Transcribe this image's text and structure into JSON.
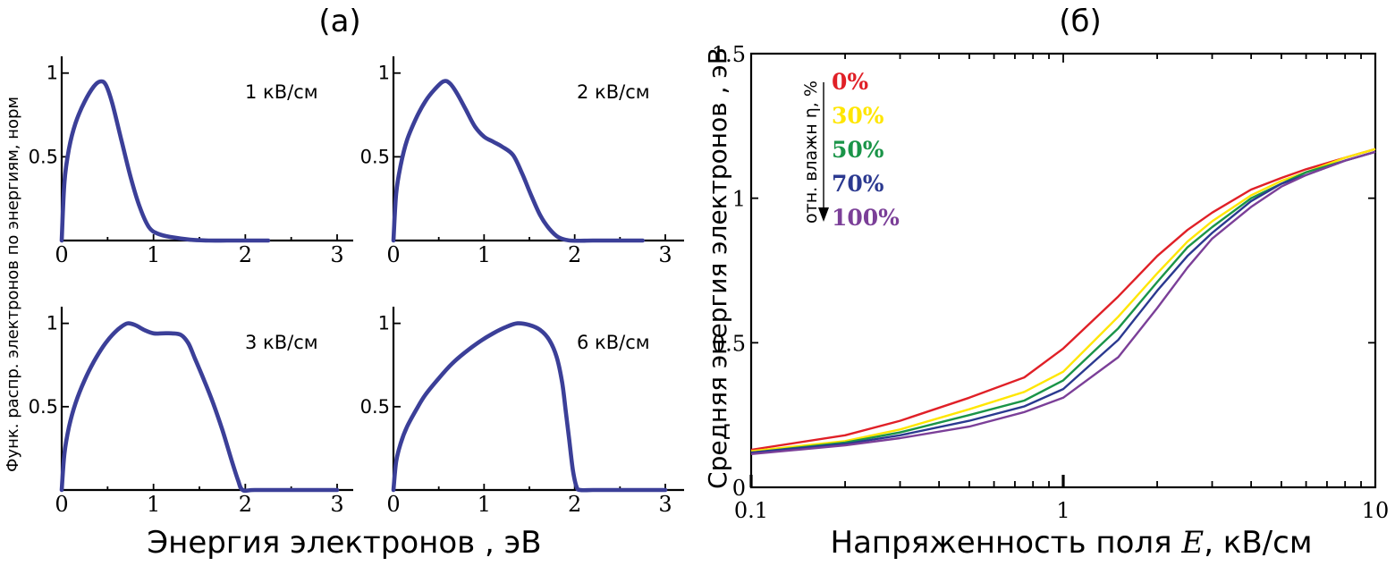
{
  "figure": {
    "panel_a_label": "(a)",
    "panel_b_label": "(б)"
  },
  "chart_data": [
    {
      "type": "line",
      "title": "(a)",
      "ylabel": "Функ. распр. электронов по энергиям, норм",
      "xlabel": "Энергия электронов , эВ",
      "xlim": [
        0,
        3
      ],
      "ylim": [
        0,
        1.1
      ],
      "x_ticks": [
        "0",
        "1",
        "2",
        "3"
      ],
      "y_ticks": [
        "0.5",
        "1"
      ],
      "color": "#3b3f98",
      "subplots": [
        {
          "label": "1 кВ/см",
          "x": [
            0,
            0.03,
            0.08,
            0.15,
            0.25,
            0.35,
            0.42,
            0.48,
            0.55,
            0.65,
            0.75,
            0.85,
            0.95,
            1.05,
            1.2,
            1.4,
            1.6,
            1.8,
            2.0,
            2.25
          ],
          "y": [
            0,
            0.35,
            0.55,
            0.7,
            0.83,
            0.92,
            0.95,
            0.93,
            0.82,
            0.6,
            0.38,
            0.2,
            0.08,
            0.04,
            0.02,
            0.005,
            0,
            0,
            0,
            0
          ]
        },
        {
          "label": "2 кВ/см",
          "x": [
            0,
            0.03,
            0.08,
            0.15,
            0.25,
            0.35,
            0.45,
            0.55,
            0.62,
            0.7,
            0.8,
            0.9,
            1.0,
            1.1,
            1.2,
            1.32,
            1.42,
            1.52,
            1.62,
            1.72,
            1.82,
            1.95,
            2.2,
            2.5,
            2.75
          ],
          "y": [
            0,
            0.28,
            0.45,
            0.6,
            0.73,
            0.83,
            0.9,
            0.95,
            0.94,
            0.88,
            0.78,
            0.68,
            0.62,
            0.59,
            0.56,
            0.51,
            0.4,
            0.27,
            0.15,
            0.07,
            0.02,
            0,
            0,
            0,
            0
          ]
        },
        {
          "label": "3 кВ/см",
          "x": [
            0,
            0.03,
            0.08,
            0.15,
            0.25,
            0.35,
            0.45,
            0.55,
            0.65,
            0.72,
            0.8,
            0.9,
            1.0,
            1.1,
            1.2,
            1.3,
            1.38,
            1.45,
            1.55,
            1.65,
            1.75,
            1.85,
            1.92,
            1.97,
            2.1,
            2.5,
            3.0
          ],
          "y": [
            0,
            0.22,
            0.38,
            0.52,
            0.66,
            0.77,
            0.86,
            0.93,
            0.98,
            1.0,
            0.99,
            0.96,
            0.94,
            0.94,
            0.94,
            0.93,
            0.88,
            0.79,
            0.66,
            0.52,
            0.36,
            0.18,
            0.06,
            0,
            0,
            0,
            0
          ]
        },
        {
          "label": "6 кВ/см",
          "x": [
            0,
            0.03,
            0.08,
            0.15,
            0.25,
            0.35,
            0.5,
            0.65,
            0.8,
            0.95,
            1.1,
            1.25,
            1.37,
            1.5,
            1.62,
            1.72,
            1.8,
            1.86,
            1.9,
            1.94,
            1.98,
            2.02,
            2.06,
            2.2,
            2.5,
            3.0
          ],
          "y": [
            0,
            0.17,
            0.28,
            0.38,
            0.48,
            0.57,
            0.67,
            0.76,
            0.83,
            0.89,
            0.94,
            0.98,
            1.0,
            0.99,
            0.96,
            0.9,
            0.8,
            0.65,
            0.48,
            0.3,
            0.12,
            0.02,
            0,
            0,
            0,
            0
          ]
        }
      ]
    },
    {
      "type": "line",
      "title": "(б)",
      "xlabel": "Напряженность поля E, кВ/см",
      "xlabel_parts": {
        "before": "Напряженность поля ",
        "var": "E",
        "after": ", кВ/см"
      },
      "ylabel": "Средняя энергия электронов , эВ",
      "x_scale": "log",
      "xlim": [
        0.1,
        10
      ],
      "ylim": [
        0,
        1.5
      ],
      "x_ticks": [
        "0.1",
        "1",
        "10"
      ],
      "y_ticks": [
        "0",
        "0.5",
        "1",
        "1.5"
      ],
      "legend_title": "отн. влажн η, %",
      "legend_placement": "top-left",
      "x": [
        0.1,
        0.2,
        0.3,
        0.5,
        0.75,
        1.0,
        1.5,
        2.0,
        2.5,
        3.0,
        4.0,
        5.0,
        6.0,
        8.0,
        10.0
      ],
      "series": [
        {
          "name": "0%",
          "color": "#e02027",
          "values": [
            0.13,
            0.18,
            0.23,
            0.31,
            0.38,
            0.48,
            0.66,
            0.8,
            0.89,
            0.95,
            1.03,
            1.07,
            1.1,
            1.14,
            1.17
          ]
        },
        {
          "name": "30%",
          "color": "#ffe600",
          "values": [
            0.125,
            0.16,
            0.2,
            0.27,
            0.33,
            0.4,
            0.59,
            0.74,
            0.85,
            0.92,
            1.01,
            1.06,
            1.09,
            1.14,
            1.17
          ]
        },
        {
          "name": "50%",
          "color": "#1a9448",
          "values": [
            0.12,
            0.155,
            0.19,
            0.25,
            0.3,
            0.37,
            0.55,
            0.71,
            0.83,
            0.9,
            1.0,
            1.05,
            1.09,
            1.13,
            1.16
          ]
        },
        {
          "name": "70%",
          "color": "#2b3990",
          "values": [
            0.12,
            0.15,
            0.18,
            0.23,
            0.28,
            0.34,
            0.51,
            0.68,
            0.8,
            0.88,
            0.99,
            1.05,
            1.08,
            1.13,
            1.16
          ]
        },
        {
          "name": "100%",
          "color": "#7b3f98",
          "values": [
            0.115,
            0.145,
            0.17,
            0.21,
            0.26,
            0.31,
            0.45,
            0.62,
            0.76,
            0.86,
            0.97,
            1.04,
            1.08,
            1.13,
            1.16
          ]
        }
      ]
    }
  ]
}
